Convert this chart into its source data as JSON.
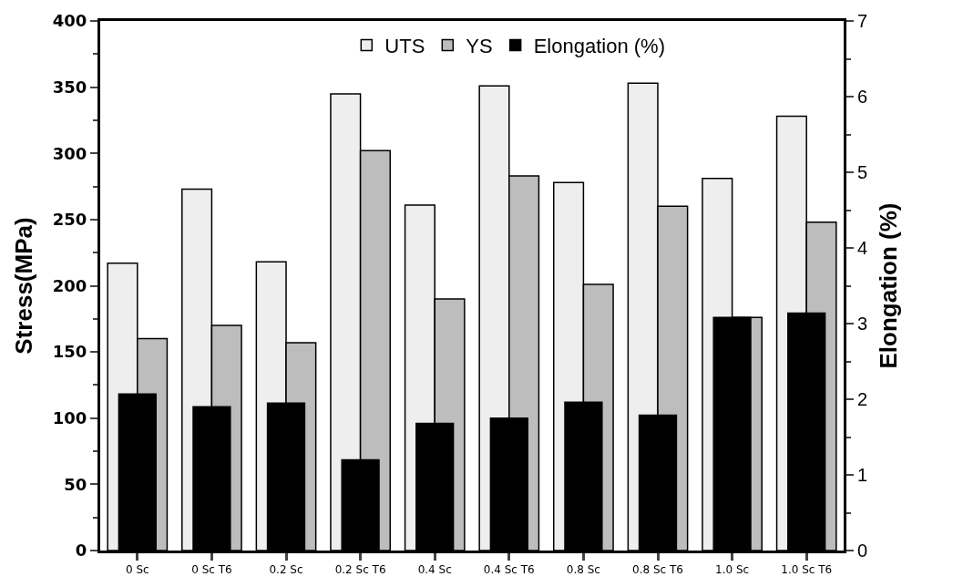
{
  "chart_data": {
    "type": "bar",
    "ylabel": "Stress(MPa)",
    "y2label": "Elongation (%)",
    "categories": [
      "0 Sc",
      "0 Sc T6",
      "0.2 Sc",
      "0.2 Sc T6",
      "0.4 Sc",
      "0.4 Sc T6",
      "0.8 Sc",
      "0.8 Sc T6",
      "1.0 Sc",
      "1.0 Sc T6"
    ],
    "series": [
      {
        "name": "UTS",
        "color": "#eeeeee",
        "values": [
          217,
          273,
          218,
          345,
          261,
          351,
          278,
          353,
          281,
          328
        ]
      },
      {
        "name": "YS",
        "color": "#bdbdbd",
        "values": [
          160,
          170,
          157,
          302,
          190,
          283,
          201,
          260,
          176,
          248
        ]
      },
      {
        "name": "Elongation (%)",
        "color": "#000000",
        "axis": "y2",
        "values": [
          2.07,
          1.9,
          1.95,
          1.2,
          1.68,
          1.75,
          1.96,
          1.79,
          3.08,
          3.14
        ]
      }
    ],
    "ylim": [
      0,
      400
    ],
    "yticks": [
      0,
      50,
      100,
      150,
      200,
      250,
      300,
      350,
      400
    ],
    "y2lim": [
      0,
      7
    ],
    "y2ticks": [
      0,
      1,
      2,
      3,
      4,
      5,
      6,
      7
    ],
    "legend": "top"
  }
}
